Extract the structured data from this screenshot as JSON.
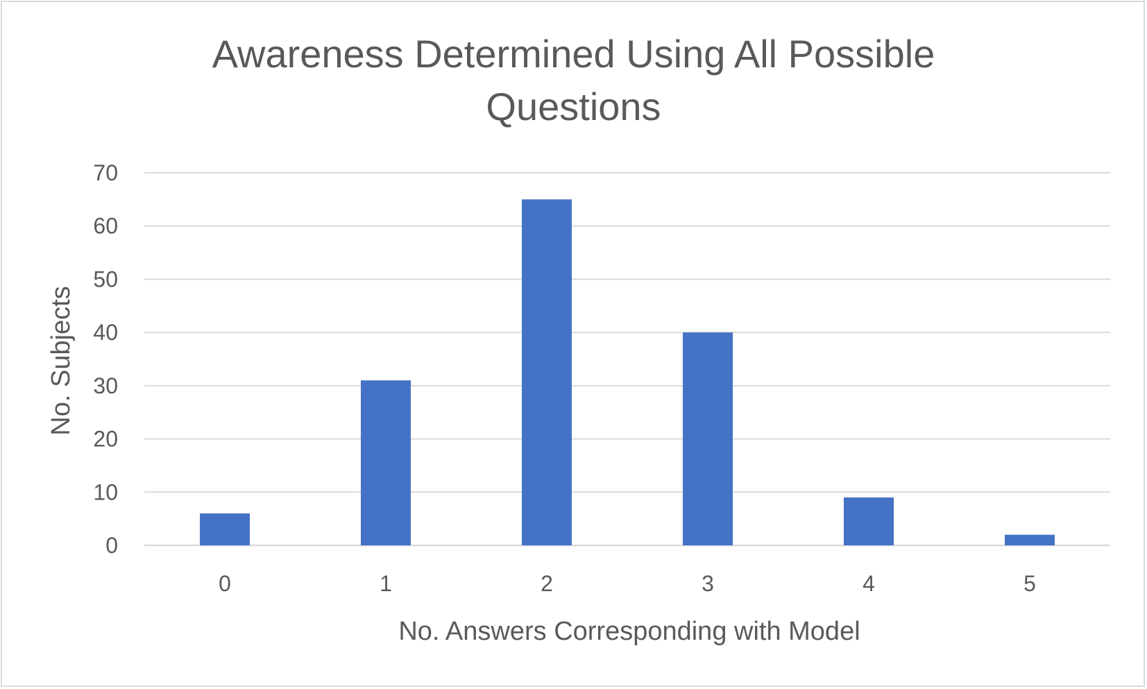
{
  "chart_data": {
    "type": "bar",
    "title_lines": [
      "Awareness Determined Using All Possible",
      "Questions"
    ],
    "xlabel": "No. Answers Corresponding with Model",
    "ylabel": "No. Subjects",
    "categories": [
      "0",
      "1",
      "2",
      "3",
      "4",
      "5"
    ],
    "values": [
      6,
      31,
      65,
      40,
      9,
      2
    ],
    "ylim": [
      0,
      70
    ],
    "yticks": [
      0,
      10,
      20,
      30,
      40,
      50,
      60,
      70
    ],
    "grid": true,
    "legend": "none",
    "bar_color": "#4472c4",
    "grid_color": "#d9d9d9",
    "text_color": "#595959"
  }
}
